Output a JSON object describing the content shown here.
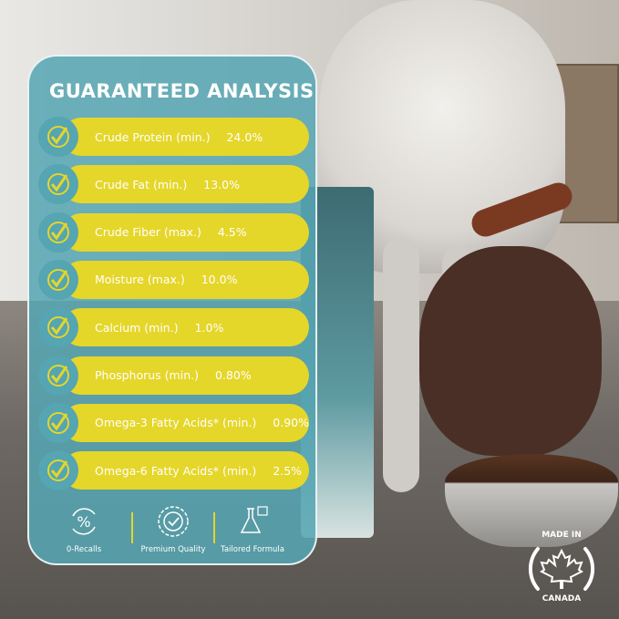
{
  "panel": {
    "title": "GUARANTEED ANALYSIS",
    "rows": [
      {
        "label": "Crude Protein (min.)",
        "value": "24.0%"
      },
      {
        "label": "Crude Fat (min.)",
        "value": "13.0%"
      },
      {
        "label": "Crude Fiber (max.)",
        "value": "4.5%"
      },
      {
        "label": "Moisture (max.)",
        "value": "10.0%"
      },
      {
        "label": "Calcium (min.)",
        "value": "1.0%"
      },
      {
        "label": "Phosphorus (min.)",
        "value": "0.80%"
      },
      {
        "label": "Omega-3 Fatty Acids* (min.)",
        "value": "0.90%"
      },
      {
        "label": "Omega-6 Fatty Acids* (min.)",
        "value": "2.5%"
      }
    ],
    "features": [
      {
        "label": "0-Recalls",
        "icon": "percent-cycle-icon"
      },
      {
        "label": "Premium Quality",
        "icon": "quality-seal-icon"
      },
      {
        "label": "Tailored Formula",
        "icon": "flask-icon"
      }
    ]
  },
  "badge": {
    "text_top": "MADE IN",
    "text_bottom": "CANADA",
    "icon": "maple-leaf-icon"
  },
  "colors": {
    "panel": "#55a5b2",
    "pill": "#e5d62a",
    "text": "#ffffff"
  }
}
